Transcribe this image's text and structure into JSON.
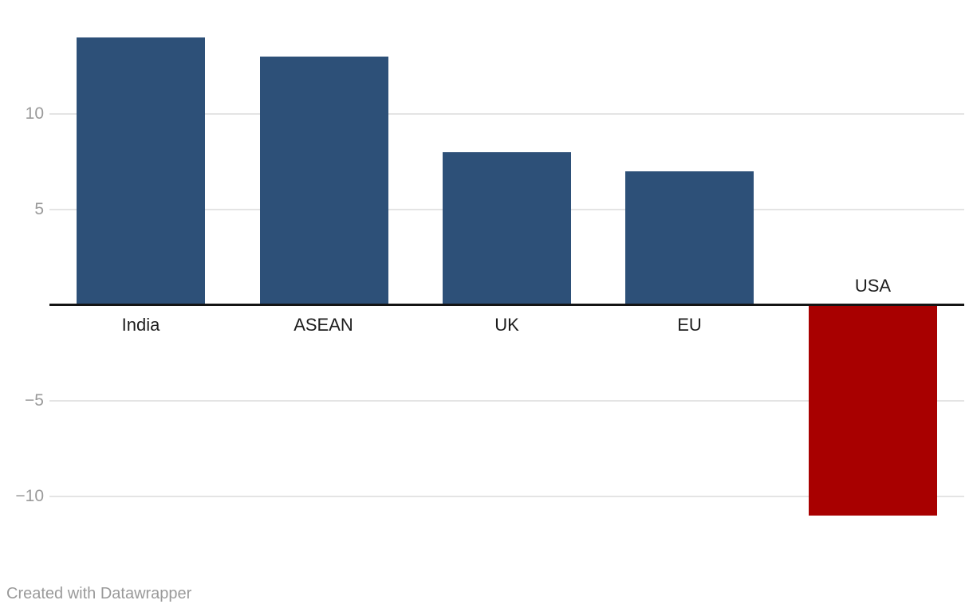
{
  "chart_data": {
    "type": "bar",
    "categories": [
      "India",
      "ASEAN",
      "UK",
      "EU",
      "USA"
    ],
    "values": [
      14,
      13,
      8,
      7,
      -11
    ],
    "title": "",
    "xlabel": "",
    "ylabel": "",
    "ylim": [
      -13,
      15
    ],
    "grid": true,
    "legend": false,
    "y_ticks": [
      {
        "value": 10,
        "label": "10"
      },
      {
        "value": 5,
        "label": "5"
      },
      {
        "value": -5,
        "label": "−5"
      },
      {
        "value": -10,
        "label": "−10"
      }
    ]
  },
  "colors": {
    "positive_bar": "#2d5078",
    "negative_bar": "#a80000",
    "gridline": "#e4e4e4",
    "axis": "#141414",
    "tick_label": "#9a9a9a",
    "category_label": "#1d1d1d",
    "credit": "#9a9a9a",
    "background": "#ffffff"
  },
  "footer": {
    "credit": "Created with Datawrapper"
  }
}
